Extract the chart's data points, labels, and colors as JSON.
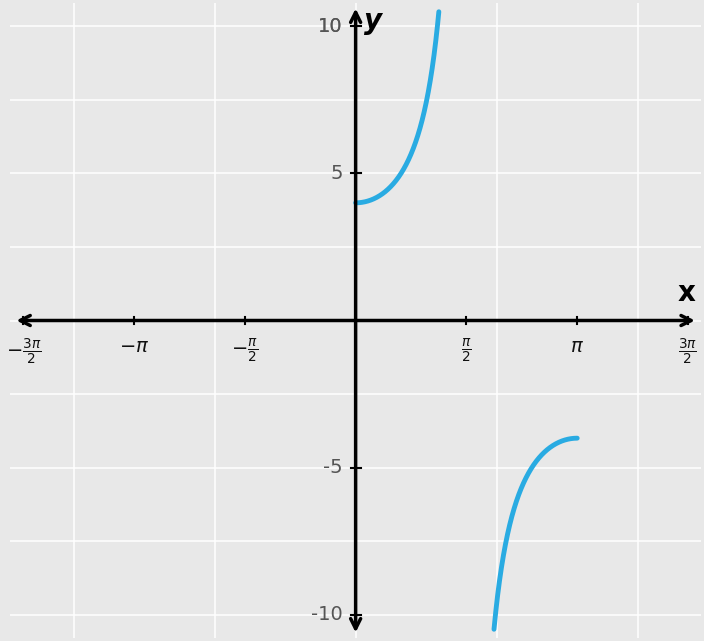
{
  "curve_color": "#29ABE2",
  "curve_linewidth": 3.5,
  "xlim": [
    -4.9,
    4.9
  ],
  "ylim": [
    -10.8,
    10.8
  ],
  "ytick_vals": [
    -10,
    -5,
    5,
    10
  ],
  "ytick_labels": [
    "-10",
    "-5",
    "5",
    "10"
  ],
  "xtick_vals": [
    -4.71238898038469,
    -3.14159265358979,
    -1.5707963267949,
    1.5707963267949,
    3.14159265358979,
    4.71238898038469
  ],
  "xtick_labels": [
    "-\\frac{3\\pi}{2}",
    "-\\pi",
    "-\\frac{\\pi}{2}",
    "\\frac{\\pi}{2}",
    "\\pi",
    "\\frac{3\\pi}{2}"
  ],
  "background_color": "#e8e8e8",
  "grid_color": "#ffffff",
  "axis_color": "#000000",
  "xlabel": "x",
  "ylabel": "y",
  "pi_half": 1.5707963267948966,
  "pi": 3.141592653589793,
  "amplitude": 4.0,
  "y_clip_max": 10.0,
  "y_clip_min": -10.0
}
